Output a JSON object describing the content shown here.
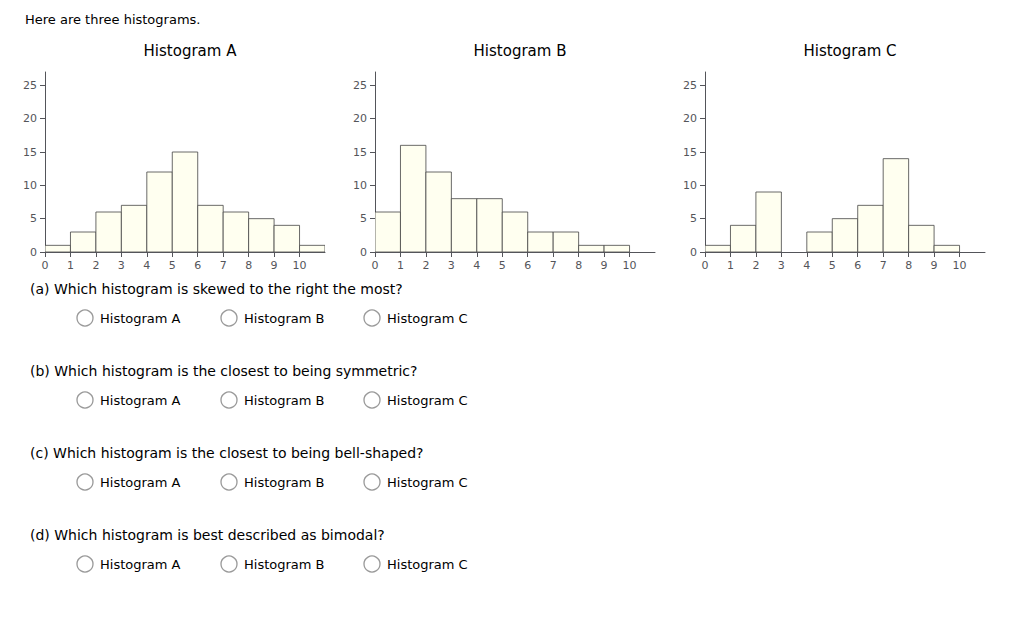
{
  "title": "Here are three histograms.",
  "chart_data": [
    {
      "type": "histogram",
      "title": "Histogram A",
      "bins": [
        0,
        1,
        2,
        3,
        4,
        5,
        6,
        7,
        8,
        9,
        10,
        11
      ],
      "values": [
        1,
        3,
        6,
        7,
        12,
        15,
        7,
        6,
        5,
        4,
        1
      ],
      "color": "#FFFFF0",
      "xlim": [
        0,
        11
      ],
      "xticks": [
        0,
        1,
        2,
        3,
        4,
        5,
        6,
        7,
        8,
        9,
        10
      ],
      "ylim": [
        0,
        27
      ],
      "yticks": [
        0,
        5,
        10,
        15,
        20,
        25
      ],
      "grid": false
    },
    {
      "type": "histogram",
      "title": "Histogram B",
      "bins": [
        0,
        1,
        2,
        3,
        4,
        5,
        6,
        7,
        8,
        9,
        10,
        11
      ],
      "values": [
        6,
        16,
        12,
        8,
        8,
        6,
        3,
        3,
        1,
        1,
        0
      ],
      "color": "#FFFFF0",
      "xlim": [
        0,
        11
      ],
      "xticks": [
        0,
        1,
        2,
        3,
        4,
        5,
        6,
        7,
        8,
        9,
        10
      ],
      "ylim": [
        0,
        27
      ],
      "yticks": [
        0,
        5,
        10,
        15,
        20,
        25
      ],
      "grid": false
    },
    {
      "type": "histogram",
      "title": "Histogram C",
      "bins": [
        0,
        1,
        2,
        3,
        4,
        5,
        6,
        7,
        8,
        9,
        10,
        11
      ],
      "values": [
        1,
        4,
        9,
        0,
        3,
        5,
        7,
        14,
        4,
        1,
        0
      ],
      "color": "#FFFFF0",
      "xlim": [
        0,
        11
      ],
      "xticks": [
        0,
        1,
        2,
        3,
        4,
        5,
        6,
        7,
        8,
        9,
        10
      ],
      "ylim": [
        0,
        27
      ],
      "yticks": [
        0,
        5,
        10,
        15,
        20,
        25
      ],
      "grid": false
    }
  ],
  "annotations": [
    {
      "text": "(a) Which histogram is skewed to the right the most?",
      "options": [
        "Histogram A",
        "Histogram B",
        "Histogram C"
      ]
    },
    {
      "text": "(b) Which histogram is the closest to being symmetric?",
      "options": [
        "Histogram A",
        "Histogram B",
        "Histogram C"
      ]
    },
    {
      "text": "(c) Which histogram is the closest to being bell-shaped?",
      "options": [
        "Histogram A",
        "Histogram B",
        "Histogram C"
      ]
    },
    {
      "text": "(d) Which histogram is best described as bimodal?",
      "options": [
        "Histogram A",
        "Histogram B",
        "Histogram C"
      ]
    }
  ]
}
